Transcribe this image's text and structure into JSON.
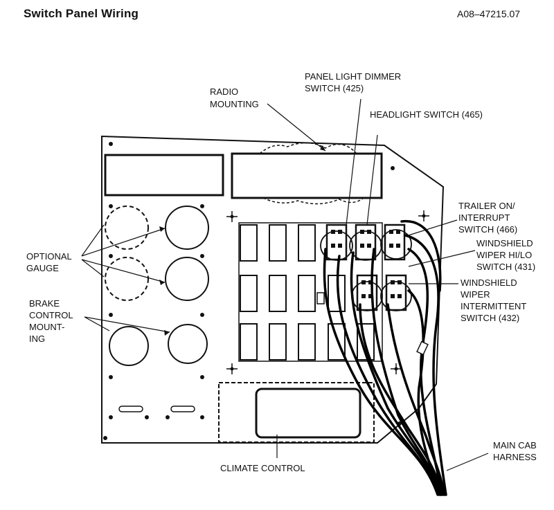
{
  "header": {
    "title": "Switch Panel Wiring",
    "code": "A08–47215.07"
  },
  "labels": {
    "radio_mounting": [
      "RADIO",
      "MOUNTING"
    ],
    "panel_light_dimmer": [
      "PANEL LIGHT DIMMER",
      "SWITCH (425)"
    ],
    "headlight_switch": [
      "HEADLIGHT SWITCH (465)"
    ],
    "trailer_switch": [
      "TRAILER ON/",
      "INTERRUPT",
      "SWITCH (466)"
    ],
    "wiper_hilo": [
      "WINDSHIELD",
      "WIPER HI/LO",
      "SWITCH (431)"
    ],
    "wiper_intermittent": [
      "WINDSHIELD",
      "WIPER",
      "INTERMITTENT",
      "SWITCH (432)"
    ],
    "optional_gauge": [
      "OPTIONAL",
      "GAUGE"
    ],
    "brake_control": [
      "BRAKE",
      "CONTROL",
      "MOUNT-",
      "ING"
    ],
    "climate_control": [
      "CLIMATE CONTROL"
    ],
    "main_cab_harness": [
      "MAIN CAB",
      "HARNESS"
    ]
  }
}
